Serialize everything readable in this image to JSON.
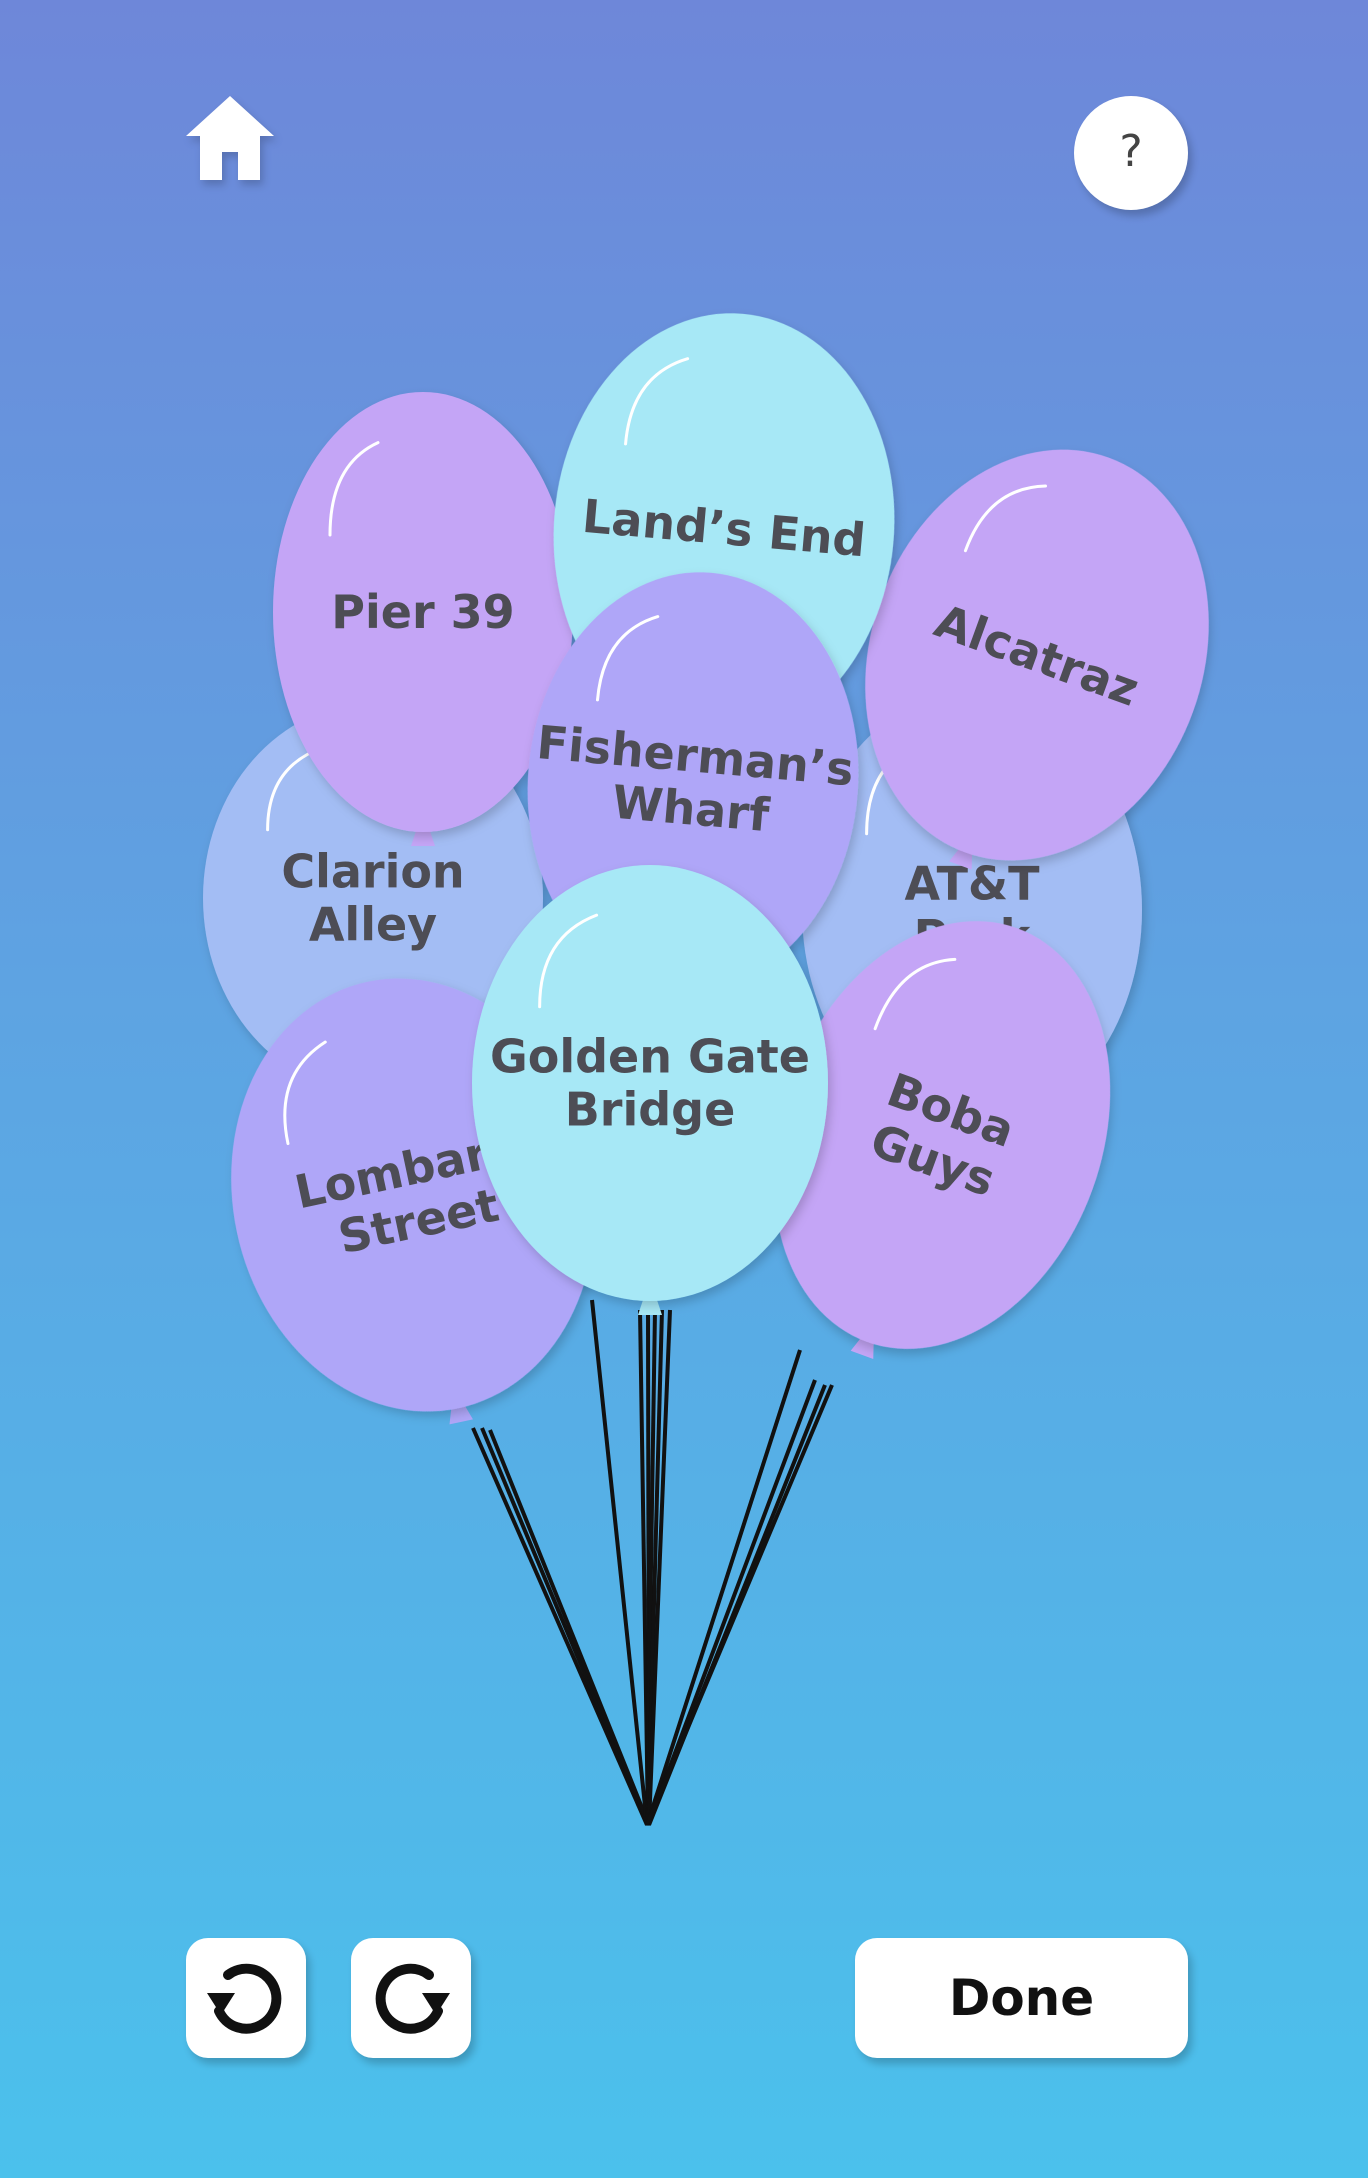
{
  "header": {
    "home_icon": "home-icon",
    "help_label": "?"
  },
  "balloons": [
    {
      "id": "clarion-alley",
      "lines": [
        "Clarion",
        "Alley"
      ],
      "color": "#a3bdf4"
    },
    {
      "id": "att-park",
      "lines": [
        "AT&T",
        "Park"
      ],
      "color": "#a3bdf4"
    },
    {
      "id": "pier-39",
      "lines": [
        "Pier 39"
      ],
      "color": "#c4a5f6"
    },
    {
      "id": "alcatraz",
      "lines": [
        "Alcatraz"
      ],
      "color": "#c4a5f6"
    },
    {
      "id": "lands-end",
      "lines": [
        "Land’s End"
      ],
      "color": "#a7e8f6"
    },
    {
      "id": "fishermans-wharf",
      "lines": [
        "Fisherman’s",
        "Wharf"
      ],
      "color": "#afa6f8"
    },
    {
      "id": "lombard-street",
      "lines": [
        "Lombard",
        "Street"
      ],
      "color": "#afa6f8"
    },
    {
      "id": "boba-guys",
      "lines": [
        "Boba",
        "Guys"
      ],
      "color": "#c4a5f6"
    },
    {
      "id": "golden-gate-bridge",
      "lines": [
        "Golden Gate",
        "Bridge"
      ],
      "color": "#a7e8f6"
    }
  ],
  "colors": {
    "text": "#4d4d55",
    "string": "#111111"
  },
  "footer": {
    "undo_icon": "undo-icon",
    "redo_icon": "redo-icon",
    "done_label": "Done"
  }
}
